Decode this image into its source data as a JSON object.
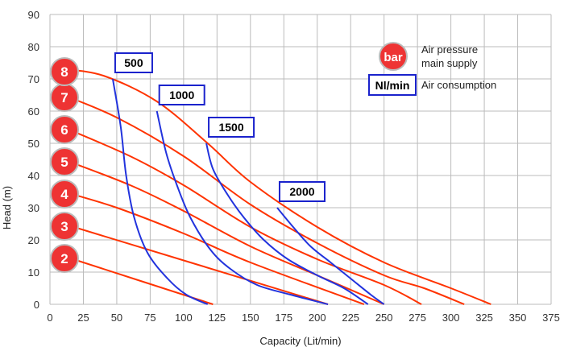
{
  "chart_data": {
    "type": "line",
    "xlabel": "Capacity (Lit/min)",
    "ylabel": "Head (m)",
    "xlim": [
      0,
      375
    ],
    "ylim": [
      0,
      90
    ],
    "x_ticks": [
      "0",
      "25",
      "50",
      "75",
      "100",
      "125",
      "150",
      "175",
      "200",
      "225",
      "250",
      "275",
      "300",
      "325",
      "350",
      "375"
    ],
    "y_ticks": [
      "0",
      "10",
      "20",
      "30",
      "40",
      "50",
      "60",
      "70",
      "80",
      "90"
    ],
    "grid": true,
    "colors": {
      "pressure": "#ff3300",
      "consumption": "#2233dd",
      "bubble": "#ee3333",
      "box_border": "#1a22cc"
    },
    "pressure_series": [
      {
        "label": "2",
        "start_y": 15,
        "points": [
          [
            10,
            15
          ],
          [
            122,
            0
          ]
        ]
      },
      {
        "label": "3",
        "start_y": 25,
        "points": [
          [
            10,
            25
          ],
          [
            208,
            0
          ]
        ]
      },
      {
        "label": "4",
        "start_y": 35,
        "points": [
          [
            10,
            35
          ],
          [
            50,
            30
          ],
          [
            100,
            22
          ],
          [
            150,
            13
          ],
          [
            235,
            0
          ]
        ]
      },
      {
        "label": "5",
        "start_y": 45,
        "points": [
          [
            10,
            45
          ],
          [
            60,
            37
          ],
          [
            100,
            29
          ],
          [
            150,
            18
          ],
          [
            200,
            9
          ],
          [
            250,
            0
          ]
        ]
      },
      {
        "label": "6",
        "start_y": 55,
        "points": [
          [
            10,
            55
          ],
          [
            60,
            46
          ],
          [
            100,
            37
          ],
          [
            150,
            24
          ],
          [
            200,
            14
          ],
          [
            250,
            6
          ],
          [
            278,
            0
          ]
        ]
      },
      {
        "label": "7",
        "start_y": 65,
        "points": [
          [
            10,
            65
          ],
          [
            50,
            58
          ],
          [
            100,
            46
          ],
          [
            150,
            31
          ],
          [
            200,
            19
          ],
          [
            250,
            9
          ],
          [
            280,
            5
          ],
          [
            310,
            0
          ]
        ]
      },
      {
        "label": "8",
        "start_y": 73,
        "points": [
          [
            10,
            73
          ],
          [
            40,
            71
          ],
          [
            80,
            63
          ],
          [
            118,
            50
          ],
          [
            150,
            38
          ],
          [
            200,
            24
          ],
          [
            250,
            13
          ],
          [
            300,
            5
          ],
          [
            330,
            0
          ]
        ]
      }
    ],
    "consumption_series": [
      {
        "label": "500",
        "points": [
          [
            47,
            70
          ],
          [
            53,
            55
          ],
          [
            57,
            40
          ],
          [
            63,
            27
          ],
          [
            73,
            16
          ],
          [
            88,
            8
          ],
          [
            102,
            3
          ],
          [
            118,
            0
          ]
        ]
      },
      {
        "label": "1000",
        "points": [
          [
            80,
            60
          ],
          [
            87,
            47
          ],
          [
            95,
            37
          ],
          [
            105,
            27
          ],
          [
            120,
            17
          ],
          [
            135,
            11
          ],
          [
            155,
            6
          ],
          [
            180,
            3
          ],
          [
            208,
            0
          ]
        ]
      },
      {
        "label": "1500",
        "points": [
          [
            117,
            50
          ],
          [
            122,
            42
          ],
          [
            133,
            34
          ],
          [
            145,
            27
          ],
          [
            160,
            20
          ],
          [
            178,
            14
          ],
          [
            200,
            9
          ],
          [
            220,
            5
          ],
          [
            238,
            0
          ]
        ]
      },
      {
        "label": "2000",
        "points": [
          [
            170,
            30
          ],
          [
            182,
            24
          ],
          [
            195,
            18
          ],
          [
            210,
            13
          ],
          [
            225,
            8
          ],
          [
            240,
            3
          ],
          [
            250,
            0
          ]
        ]
      }
    ],
    "legend": {
      "bubble_label": "bar",
      "bubble_text": [
        "Air pressure",
        "main supply"
      ],
      "box_label": "Nl/min",
      "box_text": "Air consumption"
    }
  }
}
